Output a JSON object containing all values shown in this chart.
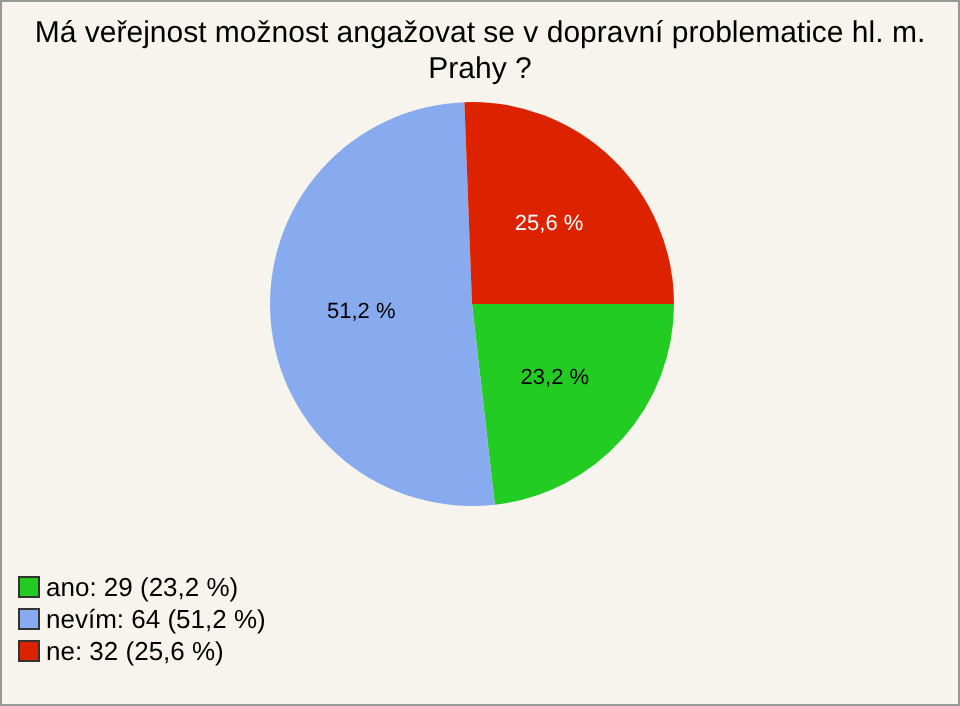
{
  "chart_data": {
    "type": "pie",
    "title": "Má veřejnost možnost angažovat se v dopravní problematice hl. m. Prahy ?",
    "categories": [
      "ano: 29 (23,2 %)",
      "nevím: 64 (51,2 %)",
      "ne: 32 (25,6 %)"
    ],
    "values": [
      23.2,
      51.2,
      25.6
    ],
    "colors": [
      "#22cc22",
      "#88aaee",
      "#dd2200"
    ],
    "value_labels": [
      "23,2 %",
      "51,2 %",
      "25,6 %"
    ],
    "legend": "bottom left"
  }
}
